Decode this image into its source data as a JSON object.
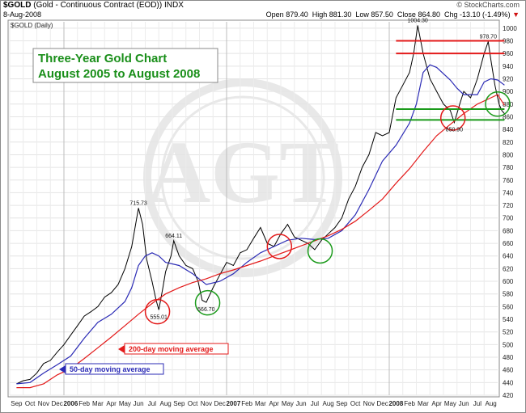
{
  "header": {
    "symbol": "$GOLD",
    "description": "(Gold - Continuous Contract (EOD))",
    "exchange": "INDX",
    "date": "8-Aug-2008",
    "watermark": "© StockCharts.com",
    "price_label": "$GOLD (Daily)",
    "ohlc": {
      "open_label": "Open",
      "open": "879.40",
      "high_label": "High",
      "high": "881.30",
      "low_label": "Low",
      "low": "857.50",
      "close_label": "Close",
      "close": "864.80",
      "chg_label": "Chg",
      "chg": "-13.10 (-1.49%)"
    }
  },
  "chart_data": {
    "type": "line",
    "title": "Three-Year Gold Chart",
    "subtitle": "August 2005 to August 2008",
    "ylim": [
      420,
      1010
    ],
    "y_ticks": [
      420,
      440,
      460,
      480,
      500,
      520,
      540,
      560,
      580,
      600,
      620,
      640,
      660,
      680,
      700,
      720,
      740,
      760,
      780,
      800,
      820,
      840,
      860,
      880,
      900,
      920,
      940,
      960,
      980,
      1000
    ],
    "x_ticks": [
      "Sep",
      "Oct",
      "Nov",
      "Dec",
      "2006",
      "Feb",
      "Mar",
      "Apr",
      "May",
      "Jun",
      "Jul",
      "Aug",
      "Sep",
      "Oct",
      "Nov",
      "Dec",
      "2007",
      "Feb",
      "Mar",
      "Apr",
      "May",
      "Jun",
      "Jul",
      "Aug",
      "Sep",
      "Oct",
      "Nov",
      "Dec",
      "2008",
      "Feb",
      "Mar",
      "Apr",
      "May",
      "Jun",
      "Jul",
      "Aug"
    ],
    "year_ticks": [
      "2006",
      "2007",
      "2008"
    ],
    "series": [
      {
        "key": "price",
        "color": "#000000",
        "points": [
          [
            0,
            438
          ],
          [
            0.5,
            443
          ],
          [
            1,
            445
          ],
          [
            1.5,
            455
          ],
          [
            2,
            470
          ],
          [
            2.5,
            475
          ],
          [
            3,
            488
          ],
          [
            3.5,
            500
          ],
          [
            4,
            515
          ],
          [
            4.5,
            530
          ],
          [
            5,
            545
          ],
          [
            5.5,
            552
          ],
          [
            6,
            560
          ],
          [
            6.5,
            575
          ],
          [
            7,
            582
          ],
          [
            7.5,
            595
          ],
          [
            8,
            620
          ],
          [
            8.5,
            655
          ],
          [
            9,
            715.73
          ],
          [
            9.3,
            690
          ],
          [
            9.6,
            635
          ],
          [
            10,
            600
          ],
          [
            10.3,
            570
          ],
          [
            10.5,
            555.01
          ],
          [
            10.8,
            590
          ],
          [
            11,
            615
          ],
          [
            11.4,
            640
          ],
          [
            11.6,
            664.11
          ],
          [
            12,
            640
          ],
          [
            12.5,
            625
          ],
          [
            13,
            620
          ],
          [
            13.4,
            600
          ],
          [
            13.7,
            570
          ],
          [
            14,
            566.7
          ],
          [
            14.5,
            590
          ],
          [
            15,
            610
          ],
          [
            15.5,
            630
          ],
          [
            16,
            625
          ],
          [
            16.5,
            645
          ],
          [
            17,
            650
          ],
          [
            17.5,
            668
          ],
          [
            18,
            685
          ],
          [
            18.5,
            660
          ],
          [
            19,
            655
          ],
          [
            19.5,
            675
          ],
          [
            20,
            690
          ],
          [
            20.5,
            670
          ],
          [
            21,
            665
          ],
          [
            21.5,
            660
          ],
          [
            22,
            650
          ],
          [
            22.5,
            665
          ],
          [
            23,
            675
          ],
          [
            23.5,
            685
          ],
          [
            24,
            700
          ],
          [
            24.5,
            730
          ],
          [
            25,
            750
          ],
          [
            25.5,
            780
          ],
          [
            26,
            800
          ],
          [
            26.5,
            835
          ],
          [
            27,
            830
          ],
          [
            27.5,
            835
          ],
          [
            28,
            890
          ],
          [
            28.5,
            910
          ],
          [
            29,
            930
          ],
          [
            29.3,
            960
          ],
          [
            29.6,
            1004.3
          ],
          [
            30,
            960
          ],
          [
            30.5,
            920
          ],
          [
            31,
            900
          ],
          [
            31.5,
            880
          ],
          [
            32,
            870
          ],
          [
            32.3,
            850.9
          ],
          [
            32.7,
            880
          ],
          [
            33,
            900
          ],
          [
            33.5,
            890
          ],
          [
            34,
            920
          ],
          [
            34.5,
            960
          ],
          [
            34.8,
            978.7
          ],
          [
            35,
            950
          ],
          [
            35.3,
            910
          ],
          [
            35.6,
            880
          ],
          [
            35.8,
            870
          ],
          [
            36,
            864.8
          ]
        ]
      },
      {
        "key": "ma50",
        "color": "#2b2bb5",
        "points": [
          [
            0,
            438
          ],
          [
            1,
            440
          ],
          [
            2,
            455
          ],
          [
            3,
            468
          ],
          [
            4,
            482
          ],
          [
            5,
            510
          ],
          [
            6,
            535
          ],
          [
            7,
            548
          ],
          [
            8,
            568
          ],
          [
            8.5,
            590
          ],
          [
            9,
            625
          ],
          [
            9.5,
            640
          ],
          [
            10,
            645
          ],
          [
            10.5,
            640
          ],
          [
            11,
            630
          ],
          [
            12,
            625
          ],
          [
            13,
            612
          ],
          [
            14,
            595
          ],
          [
            15,
            600
          ],
          [
            16,
            612
          ],
          [
            17,
            630
          ],
          [
            18,
            645
          ],
          [
            19,
            655
          ],
          [
            20,
            665
          ],
          [
            21,
            668
          ],
          [
            22,
            666
          ],
          [
            23,
            668
          ],
          [
            24,
            680
          ],
          [
            25,
            705
          ],
          [
            26,
            745
          ],
          [
            27,
            790
          ],
          [
            28,
            815
          ],
          [
            29,
            850
          ],
          [
            29.5,
            880
          ],
          [
            30,
            930
          ],
          [
            30.5,
            942
          ],
          [
            31,
            938
          ],
          [
            32,
            918
          ],
          [
            32.5,
            905
          ],
          [
            33,
            895
          ],
          [
            34,
            895
          ],
          [
            34.5,
            915
          ],
          [
            35,
            920
          ],
          [
            35.5,
            918
          ],
          [
            36,
            910
          ]
        ]
      },
      {
        "key": "ma200",
        "color": "#e31a1a",
        "points": [
          [
            0,
            432
          ],
          [
            1,
            432
          ],
          [
            2,
            438
          ],
          [
            3,
            452
          ],
          [
            4,
            462
          ],
          [
            5,
            478
          ],
          [
            6,
            495
          ],
          [
            7,
            512
          ],
          [
            8,
            530
          ],
          [
            9,
            548
          ],
          [
            10,
            565
          ],
          [
            11,
            580
          ],
          [
            12,
            590
          ],
          [
            13,
            598
          ],
          [
            14,
            604
          ],
          [
            15,
            612
          ],
          [
            16,
            618
          ],
          [
            17,
            625
          ],
          [
            18,
            632
          ],
          [
            19,
            640
          ],
          [
            20,
            648
          ],
          [
            21,
            656
          ],
          [
            22,
            664
          ],
          [
            23,
            672
          ],
          [
            24,
            682
          ],
          [
            25,
            695
          ],
          [
            26,
            712
          ],
          [
            27,
            730
          ],
          [
            28,
            755
          ],
          [
            29,
            778
          ],
          [
            30,
            805
          ],
          [
            31,
            830
          ],
          [
            32,
            848
          ],
          [
            33,
            865
          ],
          [
            34,
            880
          ],
          [
            35,
            890
          ],
          [
            35.5,
            895
          ],
          [
            36,
            878
          ]
        ]
      }
    ],
    "annotations": [
      {
        "text": "715.73",
        "x": 9,
        "y": 715.73,
        "pos": "above"
      },
      {
        "text": "664.11",
        "x": 11.6,
        "y": 664.11,
        "pos": "above"
      },
      {
        "text": "555.01",
        "x": 10.5,
        "y": 555.01,
        "pos": "below"
      },
      {
        "text": "566.70",
        "x": 14,
        "y": 566.7,
        "pos": "below"
      },
      {
        "text": "1004.30",
        "x": 29.6,
        "y": 1004.3,
        "pos": "above"
      },
      {
        "text": "978.70",
        "x": 34.8,
        "y": 978.7,
        "pos": "above"
      },
      {
        "text": "850.90",
        "x": 32.3,
        "y": 850.9,
        "pos": "below"
      }
    ],
    "circles": [
      {
        "x": 10.4,
        "y": 552,
        "color": "red"
      },
      {
        "x": 14.1,
        "y": 566,
        "color": "green"
      },
      {
        "x": 19.4,
        "y": 655,
        "color": "red"
      },
      {
        "x": 22.4,
        "y": 648,
        "color": "green"
      },
      {
        "x": 32.2,
        "y": 858,
        "color": "red"
      },
      {
        "x": 35.5,
        "y": 880,
        "color": "green"
      }
    ],
    "hlines": [
      {
        "y": 980,
        "x0": 28,
        "x1": 36,
        "color": "red"
      },
      {
        "y": 960,
        "x0": 28,
        "x1": 36,
        "color": "red"
      },
      {
        "y": 872,
        "x0": 28,
        "x1": 36,
        "color": "green"
      },
      {
        "y": 855,
        "x0": 28,
        "x1": 36,
        "color": "green"
      }
    ],
    "legend": [
      {
        "text": "200-day moving average",
        "color": "#e31a1a"
      },
      {
        "text": "50-day moving average",
        "color": "#2b2bb5"
      }
    ]
  }
}
